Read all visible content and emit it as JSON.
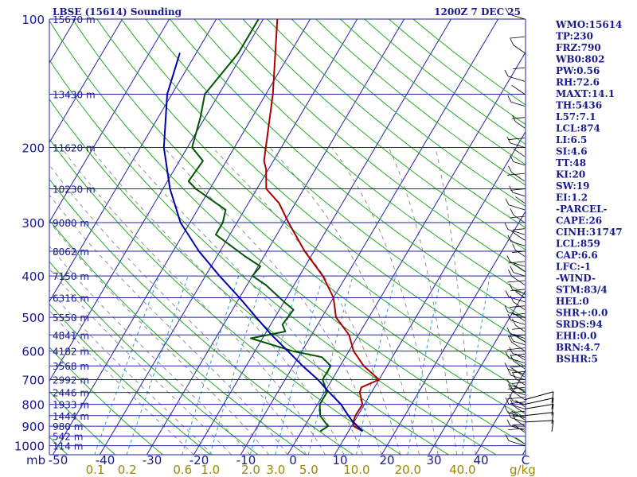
{
  "chart_data": {
    "type": "line",
    "title_left": "LBSE (15614) Sounding",
    "title_right": "1200Z  7 DEC 25",
    "pressure_levels": [
      100,
      200,
      300,
      400,
      500,
      600,
      700,
      800,
      900,
      1000
    ],
    "pressure_tick_labels": [
      "100",
      "200",
      "300",
      "400",
      "500",
      "600",
      "700",
      "800",
      "900",
      "1000"
    ],
    "pressure_unit": "mb",
    "temperature_ticks": [
      -50,
      -40,
      -30,
      -20,
      -10,
      0,
      10,
      20,
      30,
      40
    ],
    "temperature_tick_labels": [
      "-50",
      "-40",
      "-30",
      "-20",
      "-10",
      "0",
      "10",
      "20",
      "30",
      "40"
    ],
    "temperature_unit": "C",
    "mixing_ratio_labels": [
      "0.1",
      "0.2",
      "0.6",
      "1.0",
      "2.0",
      "3.0",
      "5.0",
      "10.0",
      "20.0",
      "40.0"
    ],
    "mixing_ratio_unit": "g/kg",
    "height_labels": [
      {
        "p": 100,
        "text": "15670 m"
      },
      {
        "p": 150,
        "text": "13430 m"
      },
      {
        "p": 200,
        "text": "11620 m"
      },
      {
        "p": 250,
        "text": "10230 m"
      },
      {
        "p": 300,
        "text": "9080 m"
      },
      {
        "p": 350,
        "text": "8062 m"
      },
      {
        "p": 400,
        "text": "7150 m"
      },
      {
        "p": 450,
        "text": "6316 m"
      },
      {
        "p": 500,
        "text": "5550 m"
      },
      {
        "p": 550,
        "text": "4841 m"
      },
      {
        "p": 600,
        "text": "4182 m"
      },
      {
        "p": 650,
        "text": "3568 m"
      },
      {
        "p": 700,
        "text": "2992 m"
      },
      {
        "p": 750,
        "text": "2446 m"
      },
      {
        "p": 800,
        "text": "1933 m"
      },
      {
        "p": 850,
        "text": "1444 m"
      },
      {
        "p": 900,
        "text": "980 m"
      },
      {
        "p": 950,
        "text": "542 m"
      },
      {
        "p": 1000,
        "text": "114 m"
      }
    ],
    "series": [
      {
        "color": "#aa0000",
        "points": [
          {
            "p": 925,
            "t": 13.0
          },
          {
            "p": 900,
            "t": 10.5
          },
          {
            "p": 880,
            "t": 9.8
          },
          {
            "p": 850,
            "t": 9.5
          },
          {
            "p": 800,
            "t": 9.6
          },
          {
            "p": 750,
            "t": 7.5
          },
          {
            "p": 730,
            "t": 7.2
          },
          {
            "p": 700,
            "t": 10.0
          },
          {
            "p": 650,
            "t": 5.0
          },
          {
            "p": 600,
            "t": 1.0
          },
          {
            "p": 550,
            "t": -2.0
          },
          {
            "p": 500,
            "t": -7.0
          },
          {
            "p": 450,
            "t": -10.0
          },
          {
            "p": 400,
            "t": -15.0
          },
          {
            "p": 350,
            "t": -22.0
          },
          {
            "p": 300,
            "t": -29.0
          },
          {
            "p": 270,
            "t": -33.5
          },
          {
            "p": 250,
            "t": -38.0
          },
          {
            "p": 225,
            "t": -40.5
          },
          {
            "p": 215,
            "t": -42.0
          },
          {
            "p": 150,
            "t": -48.5
          },
          {
            "p": 100,
            "t": -57.0
          }
        ]
      },
      {
        "color": "#005500",
        "points": [
          {
            "p": 925,
            "t": 4.0
          },
          {
            "p": 900,
            "t": 5.0
          },
          {
            "p": 880,
            "t": 3.8
          },
          {
            "p": 850,
            "t": 2.0
          },
          {
            "p": 800,
            "t": 0.5
          },
          {
            "p": 750,
            "t": 0.5
          },
          {
            "p": 700,
            "t": -2.0
          },
          {
            "p": 650,
            "t": -2.0
          },
          {
            "p": 620,
            "t": -5.0
          },
          {
            "p": 600,
            "t": -12.0
          },
          {
            "p": 560,
            "t": -22.5
          },
          {
            "p": 540,
            "t": -16.0
          },
          {
            "p": 520,
            "t": -17.5
          },
          {
            "p": 480,
            "t": -17.0
          },
          {
            "p": 460,
            "t": -20.0
          },
          {
            "p": 420,
            "t": -26.0
          },
          {
            "p": 400,
            "t": -30.0
          },
          {
            "p": 380,
            "t": -29.5
          },
          {
            "p": 360,
            "t": -34.0
          },
          {
            "p": 320,
            "t": -43.0
          },
          {
            "p": 300,
            "t": -43.0
          },
          {
            "p": 280,
            "t": -44.0
          },
          {
            "p": 250,
            "t": -53.0
          },
          {
            "p": 240,
            "t": -55.5
          },
          {
            "p": 215,
            "t": -55.0
          },
          {
            "p": 200,
            "t": -59.0
          },
          {
            "p": 170,
            "t": -61.0
          },
          {
            "p": 150,
            "t": -63.0
          },
          {
            "p": 120,
            "t": -61.0
          },
          {
            "p": 100,
            "t": -61.0
          }
        ]
      },
      {
        "color": "#0000aa",
        "points": [
          {
            "p": 925,
            "t": 13.0
          },
          {
            "p": 875,
            "t": 9.5
          },
          {
            "p": 850,
            "t": 8.0
          },
          {
            "p": 800,
            "t": 5.0
          },
          {
            "p": 750,
            "t": 1.0
          },
          {
            "p": 700,
            "t": -3.0
          },
          {
            "p": 650,
            "t": -8.0
          },
          {
            "p": 600,
            "t": -13.0
          },
          {
            "p": 550,
            "t": -18.5
          },
          {
            "p": 500,
            "t": -24.0
          },
          {
            "p": 450,
            "t": -30.0
          },
          {
            "p": 400,
            "t": -37.0
          },
          {
            "p": 350,
            "t": -44.5
          },
          {
            "p": 300,
            "t": -52.0
          },
          {
            "p": 250,
            "t": -58.5
          },
          {
            "p": 200,
            "t": -65.0
          },
          {
            "p": 150,
            "t": -71.0
          },
          {
            "p": 120,
            "t": -73.5
          }
        ]
      }
    ],
    "indices": [
      {
        "text": "WMO:15614"
      },
      {
        "text": "TP:230"
      },
      {
        "text": "FRZ:790"
      },
      {
        "text": "WB0:802"
      },
      {
        "text": "PW:0.56"
      },
      {
        "text": "RH:72.6"
      },
      {
        "text": "MAXT:14.1"
      },
      {
        "text": "TH:5436"
      },
      {
        "text": "L57:7.1"
      },
      {
        "text": "LCL:874"
      },
      {
        "text": "LI:6.5"
      },
      {
        "text": "SI:4.6"
      },
      {
        "text": "TT:48"
      },
      {
        "text": "KI:20"
      },
      {
        "text": "SW:19"
      },
      {
        "text": "EI:1.2"
      },
      {
        "text": "-PARCEL-"
      },
      {
        "text": "CAPE:26"
      },
      {
        "text": "CINH:31747"
      },
      {
        "text": "LCL:859"
      },
      {
        "text": "CAP:6.6"
      },
      {
        "text": "LFC:-1"
      },
      {
        "text": "-WIND-"
      },
      {
        "text": "STM:83/4"
      },
      {
        "text": "HEL:0"
      },
      {
        "text": "SHR+:0.0"
      },
      {
        "text": "SRDS:94"
      },
      {
        "text": "EHI:0.0"
      },
      {
        "text": "BRN:4.7"
      },
      {
        "text": "BSHR:5"
      }
    ],
    "grid": true,
    "colors": {
      "isobar": "#2222aa",
      "isotherm": "#2222aa",
      "dry_adiabat": "#22aa22",
      "moist_adiabat": "#777777",
      "mixing_ratio": "#3399cc",
      "text": "#1a1a8c"
    }
  }
}
